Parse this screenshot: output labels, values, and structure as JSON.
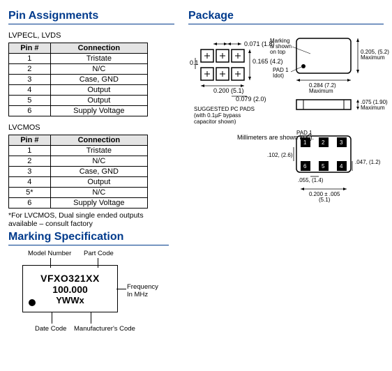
{
  "headings": {
    "pin_assignments": "Pin Assignments",
    "package": "Package",
    "marking_spec": "Marking Specification"
  },
  "table1": {
    "subhead": "LVPECL, LVDS",
    "col1": "Pin #",
    "col2": "Connection",
    "rows": [
      {
        "pin": "1",
        "conn": "Tristate"
      },
      {
        "pin": "2",
        "conn": "N/C"
      },
      {
        "pin": "3",
        "conn": "Case, GND"
      },
      {
        "pin": "4",
        "conn": "Output"
      },
      {
        "pin": "5",
        "conn": "Output"
      },
      {
        "pin": "6",
        "conn": "Supply Voltage"
      }
    ]
  },
  "table2": {
    "subhead": "LVCMOS",
    "col1": "Pin #",
    "col2": "Connection",
    "rows": [
      {
        "pin": "1",
        "conn": "Tristate"
      },
      {
        "pin": "2",
        "conn": "N/C"
      },
      {
        "pin": "3",
        "conn": "Case, GND"
      },
      {
        "pin": "4",
        "conn": "Output"
      },
      {
        "pin": "5*",
        "conn": "N/C"
      },
      {
        "pin": "6",
        "conn": "Supply Voltage"
      }
    ],
    "footnote": "*For LVCMOS, Dual single ended outputs available – consult factory"
  },
  "package": {
    "top_dim": "0.071 (1.8)",
    "left_dim": "0.1",
    "height_dim": "0.165\n(4.2)",
    "pad_w": "0.200\n(5.1)",
    "bottom_dim": "0.079 (2.0)",
    "pads_note": "SUGGESTED PC PADS\n(with 0.1µF bypass\ncapacitor shown)",
    "marking_note": "Marking\nis shown\non top",
    "pad1_note": "PAD 1\nIdot)",
    "outer_h": "0.205, (5.2)\nMaximum",
    "outer_w": "0.284 (7.2)\nMaximum",
    "thick": ".075 (1.90)\nMaximum",
    "mm_note": "Millimeters are shown in ( ).",
    "pad1_b": "PAD 1",
    "p1": "1",
    "p2": "2",
    "p3": "3",
    "p4": "4",
    "p5": "5",
    "p6": "6",
    "bot_h": ".102, (2.6)",
    "bot_r": ".047, (1.2)",
    "bot_g": ".055, (1.4)",
    "bot_w": "0.200 ± .005\n(5.1)"
  },
  "marking": {
    "model_lbl": "Model Number",
    "part_lbl": "Part Code",
    "freq_lbl": "Frequency\nIn MHz",
    "date_lbl": "Date Code",
    "mfr_lbl": "Manufacturer's Code",
    "line1": "VFXO321XX",
    "line2": "100.000",
    "line3": "YWWx"
  }
}
